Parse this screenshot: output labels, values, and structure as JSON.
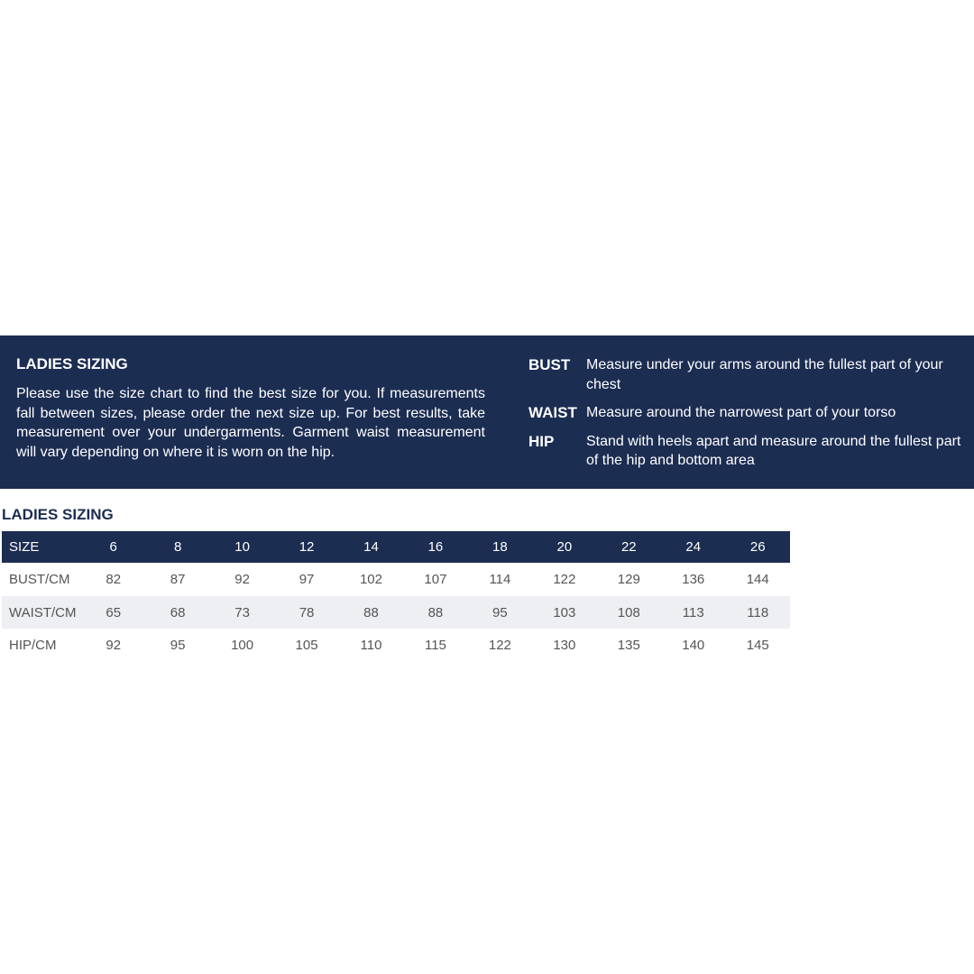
{
  "banner": {
    "title": "LADIES SIZING",
    "intro": "Please use the size chart to find the best size for you. If measurements fall between sizes, please order the next size up. For best results, take measurement over your undergarments. Garment waist measurement will vary depending on where it is worn on the hip.",
    "definitions": [
      {
        "term": "BUST",
        "text": "Measure under your arms around the fullest part of your chest"
      },
      {
        "term": "WAIST",
        "text": "Measure around the narrowest part of your torso"
      },
      {
        "term": "HIP",
        "text": "Stand with heels apart and measure around the fullest part of the hip and bottom area"
      }
    ]
  },
  "table": {
    "title": "LADIES SIZING",
    "header": [
      "SIZE",
      "6",
      "8",
      "10",
      "12",
      "14",
      "16",
      "18",
      "20",
      "22",
      "24",
      "26"
    ],
    "rows": [
      [
        "BUST/CM",
        "82",
        "87",
        "92",
        "97",
        "102",
        "107",
        "114",
        "122",
        "129",
        "136",
        "144"
      ],
      [
        "WAIST/CM",
        "65",
        "68",
        "73",
        "78",
        "88",
        "88",
        "95",
        "103",
        "108",
        "113",
        "118"
      ],
      [
        "HIP/CM",
        "92",
        "95",
        "100",
        "105",
        "110",
        "115",
        "122",
        "130",
        "135",
        "140",
        "145"
      ]
    ]
  }
}
